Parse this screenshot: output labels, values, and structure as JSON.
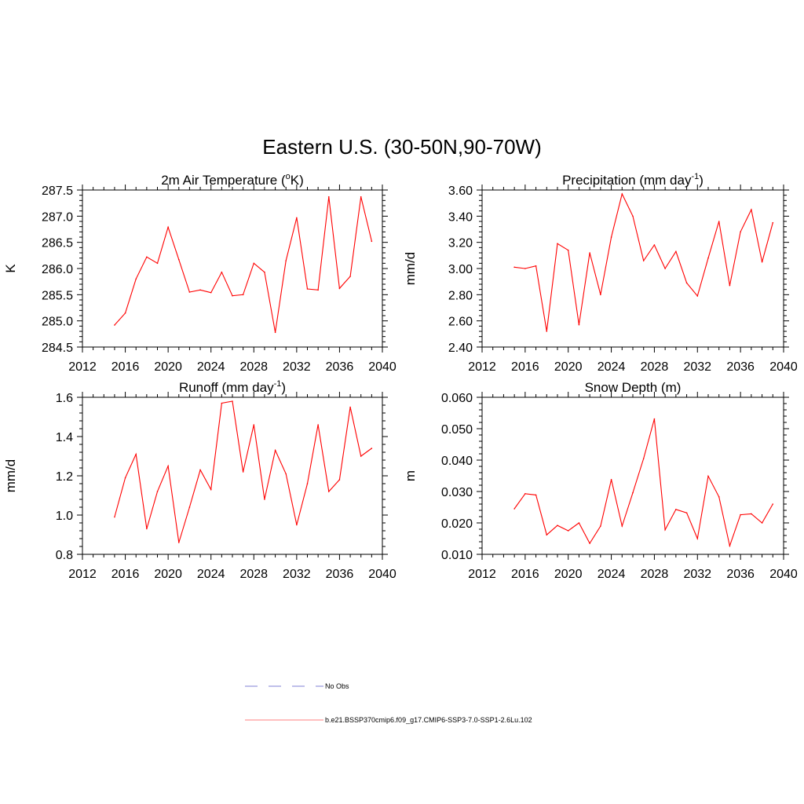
{
  "figure": {
    "title": "Eastern U.S. (30-50N,90-70W)"
  },
  "legend": {
    "entries": [
      {
        "label": "No Obs",
        "style": "dashed",
        "color": "#9999dd"
      },
      {
        "label": "b.e21.BSSP370cmip6.f09_g17.CMIP6-SSP3-7.0-SSP1-2.6Lu.102",
        "style": "solid",
        "color": "#ff9999"
      }
    ]
  },
  "chart_data": [
    {
      "type": "line",
      "title": "2m Air Temperature (",
      "title_sup": "o",
      "title_after": "K)",
      "ylabel": "K",
      "xlim": [
        2012,
        2040
      ],
      "xticks": [
        "2012",
        "2016",
        "2020",
        "2024",
        "2028",
        "2032",
        "2036",
        "2040"
      ],
      "ylim": [
        284.5,
        287.5
      ],
      "yticks": [
        "284.5",
        "285.0",
        "285.5",
        "286.0",
        "286.5",
        "287.0",
        "287.5"
      ],
      "line_color": "#ff0000",
      "x": [
        2015,
        2016,
        2017,
        2018,
        2019,
        2020,
        2021,
        2022,
        2023,
        2024,
        2025,
        2026,
        2027,
        2028,
        2029,
        2030,
        2031,
        2032,
        2033,
        2034,
        2035,
        2036,
        2037,
        2038,
        2039
      ],
      "values": [
        284.92,
        285.15,
        285.8,
        286.22,
        286.1,
        286.79,
        286.17,
        285.55,
        285.59,
        285.54,
        285.93,
        285.48,
        285.5,
        286.1,
        285.93,
        284.78,
        286.15,
        286.97,
        285.61,
        285.59,
        287.37,
        285.62,
        285.85,
        287.37,
        286.52
      ]
    },
    {
      "type": "line",
      "title": "Precipitation (mm day",
      "title_sup": "-1",
      "title_after": ")",
      "ylabel": "mm/d",
      "xlim": [
        2012,
        2040
      ],
      "xticks": [
        "2012",
        "2016",
        "2020",
        "2024",
        "2028",
        "2032",
        "2036",
        "2040"
      ],
      "ylim": [
        2.4,
        3.6
      ],
      "yticks": [
        "2.40",
        "2.60",
        "2.80",
        "3.00",
        "3.20",
        "3.40",
        "3.60"
      ],
      "line_color": "#ff0000",
      "x": [
        2015,
        2016,
        2017,
        2018,
        2019,
        2020,
        2021,
        2022,
        2023,
        2024,
        2025,
        2026,
        2027,
        2028,
        2029,
        2030,
        2031,
        2032,
        2033,
        2034,
        2035,
        2036,
        2037,
        2038,
        2039
      ],
      "values": [
        3.01,
        3.0,
        3.02,
        2.52,
        3.19,
        3.14,
        2.57,
        3.12,
        2.8,
        3.24,
        3.57,
        3.4,
        3.06,
        3.18,
        3.0,
        3.13,
        2.89,
        2.79,
        3.08,
        3.36,
        2.87,
        3.28,
        3.45,
        3.05,
        3.35
      ]
    },
    {
      "type": "line",
      "title": "Runoff (mm day",
      "title_sup": "-1",
      "title_after": ")",
      "ylabel": "mm/d",
      "xlim": [
        2012,
        2040
      ],
      "xticks": [
        "2012",
        "2016",
        "2020",
        "2024",
        "2028",
        "2032",
        "2036",
        "2040"
      ],
      "ylim": [
        0.8,
        1.6
      ],
      "yticks": [
        "0.8",
        "1.0",
        "1.2",
        "1.4",
        "1.6"
      ],
      "line_color": "#ff0000",
      "x": [
        2015,
        2016,
        2017,
        2018,
        2019,
        2020,
        2021,
        2022,
        2023,
        2024,
        2025,
        2026,
        2027,
        2028,
        2029,
        2030,
        2031,
        2032,
        2033,
        2034,
        2035,
        2036,
        2037,
        2038,
        2039
      ],
      "values": [
        0.99,
        1.19,
        1.31,
        0.93,
        1.12,
        1.25,
        0.86,
        1.04,
        1.23,
        1.13,
        1.57,
        1.58,
        1.22,
        1.46,
        1.08,
        1.33,
        1.21,
        0.95,
        1.16,
        1.46,
        1.12,
        1.18,
        1.55,
        1.3,
        1.34
      ]
    },
    {
      "type": "line",
      "title": "Snow Depth (m)",
      "title_sup": "",
      "title_after": "",
      "ylabel": "m",
      "xlim": [
        2012,
        2040
      ],
      "xticks": [
        "2012",
        "2016",
        "2020",
        "2024",
        "2028",
        "2032",
        "2036",
        "2040"
      ],
      "ylim": [
        0.01,
        0.06
      ],
      "yticks": [
        "0.010",
        "0.020",
        "0.030",
        "0.040",
        "0.050",
        "0.060"
      ],
      "line_color": "#ff0000",
      "x": [
        2015,
        2016,
        2017,
        2018,
        2019,
        2020,
        2021,
        2022,
        2023,
        2024,
        2025,
        2026,
        2027,
        2028,
        2029,
        2030,
        2031,
        2032,
        2033,
        2034,
        2035,
        2036,
        2037,
        2038,
        2039
      ],
      "values": [
        0.0245,
        0.0293,
        0.0289,
        0.0162,
        0.0192,
        0.0175,
        0.02,
        0.0135,
        0.019,
        0.0338,
        0.019,
        0.0296,
        0.0405,
        0.0531,
        0.0178,
        0.0243,
        0.0232,
        0.015,
        0.0349,
        0.0283,
        0.0127,
        0.0226,
        0.0229,
        0.02,
        0.026
      ]
    }
  ]
}
